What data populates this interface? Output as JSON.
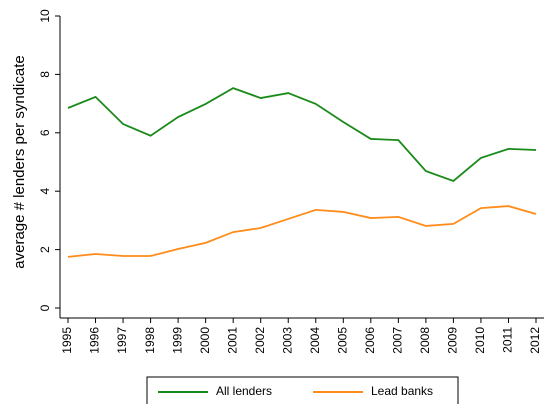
{
  "chart_data": {
    "type": "line",
    "y_label": "average # lenders per syndicate",
    "x": [
      1995,
      1996,
      1997,
      1998,
      1999,
      2000,
      2001,
      2002,
      2003,
      2004,
      2005,
      2006,
      2007,
      2008,
      2009,
      2010,
      2011,
      2012
    ],
    "xlim": [
      1995,
      2012
    ],
    "xticks": [
      1995,
      1996,
      1997,
      1998,
      1999,
      2000,
      2001,
      2002,
      2003,
      2004,
      2005,
      2006,
      2007,
      2008,
      2009,
      2010,
      2011,
      2012
    ],
    "ylim": [
      0,
      10
    ],
    "yticks": [
      0,
      2,
      4,
      6,
      8,
      10
    ],
    "series": [
      {
        "name": "All lenders",
        "color": "#1a8a1a",
        "values": [
          6.85,
          7.23,
          6.3,
          5.9,
          6.54,
          6.99,
          7.53,
          7.19,
          7.36,
          6.99,
          6.37,
          5.79,
          5.75,
          4.69,
          4.35,
          5.14,
          5.45,
          5.41
        ]
      },
      {
        "name": "Lead banks",
        "color": "#ff8c1a",
        "values": [
          1.75,
          1.85,
          1.78,
          1.78,
          2.02,
          2.23,
          2.6,
          2.74,
          3.05,
          3.36,
          3.29,
          3.08,
          3.12,
          2.81,
          2.88,
          3.42,
          3.49,
          3.22
        ]
      }
    ],
    "legend": "bottom"
  }
}
